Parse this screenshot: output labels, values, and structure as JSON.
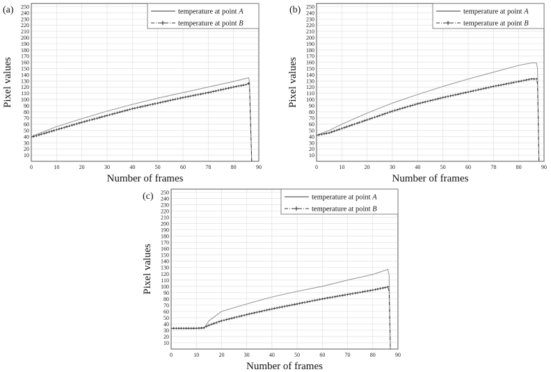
{
  "chart_data": [
    {
      "type": "line",
      "panel_label": "(a)",
      "xlabel": "Number of frames",
      "ylabel": "Pixel values",
      "xlim": [
        0,
        90
      ],
      "ylim": [
        0,
        255
      ],
      "xticks": [
        "0",
        "10",
        "20",
        "30",
        "40",
        "50",
        "60",
        "78",
        "80",
        "90"
      ],
      "yticks": [
        "10",
        "20",
        "30",
        "40",
        "50",
        "60",
        "70",
        "80",
        "90",
        "100",
        "110",
        "120",
        "130",
        "140",
        "150",
        "160",
        "170",
        "180",
        "190",
        "200",
        "210",
        "220",
        "230",
        "240",
        "250"
      ],
      "grid": true,
      "legend": "top-right",
      "series": [
        {
          "name": "temperature at point ",
          "name_italic": "A",
          "style": "solid",
          "color": "#9a9a9a",
          "x": [
            0,
            5,
            10,
            20,
            30,
            40,
            50,
            60,
            70,
            80,
            85,
            86,
            86.3,
            87.2
          ],
          "y": [
            40,
            48,
            56,
            69,
            81,
            92,
            102,
            111,
            120,
            129,
            134,
            135,
            128,
            0
          ]
        },
        {
          "name": "temperature at point ",
          "name_italic": "B",
          "style": "dashdot-plus",
          "color": "#333333",
          "x": [
            0,
            5,
            10,
            20,
            30,
            40,
            50,
            60,
            70,
            80,
            85,
            86,
            86.3,
            87.2
          ],
          "y": [
            39,
            45,
            51,
            63,
            74,
            85,
            94,
            103,
            111,
            120,
            124,
            126,
            120,
            0
          ]
        }
      ]
    },
    {
      "type": "line",
      "panel_label": "(b)",
      "xlabel": "Number of frames",
      "ylabel": "Pixel values",
      "xlim": [
        0,
        90
      ],
      "ylim": [
        0,
        255
      ],
      "xticks": [
        "0",
        "10",
        "20",
        "30",
        "40",
        "50",
        "60",
        "78",
        "80",
        "90"
      ],
      "yticks": [
        "10",
        "20",
        "30",
        "40",
        "50",
        "60",
        "70",
        "80",
        "90",
        "100",
        "110",
        "120",
        "130",
        "140",
        "150",
        "160",
        "170",
        "180",
        "190",
        "200",
        "210",
        "220",
        "230",
        "240",
        "250"
      ],
      "grid": true,
      "legend": "top-right",
      "series": [
        {
          "name": "temperature at point ",
          "name_italic": "A",
          "style": "solid",
          "color": "#9a9a9a",
          "x": [
            0,
            5,
            10,
            20,
            30,
            40,
            50,
            60,
            70,
            80,
            85,
            87,
            87.4,
            88
          ],
          "y": [
            42,
            50,
            60,
            78,
            94,
            108,
            121,
            133,
            144,
            155,
            159,
            159,
            150,
            0
          ]
        },
        {
          "name": "temperature at point ",
          "name_italic": "B",
          "style": "dashdot-plus",
          "color": "#333333",
          "x": [
            0,
            5,
            10,
            20,
            30,
            40,
            50,
            60,
            70,
            80,
            85,
            87,
            87.4,
            88
          ],
          "y": [
            42,
            46,
            53,
            67,
            81,
            93,
            103,
            112,
            121,
            129,
            133,
            133,
            125,
            0
          ]
        }
      ]
    },
    {
      "type": "line",
      "panel_label": "(c)",
      "xlabel": "Number of frames",
      "ylabel": "Pixel values",
      "xlim": [
        0,
        90
      ],
      "ylim": [
        0,
        255
      ],
      "xticks": [
        "0",
        "10",
        "20",
        "30",
        "40",
        "50",
        "60",
        "70",
        "80",
        "90"
      ],
      "yticks": [
        "10",
        "20",
        "30",
        "40",
        "50",
        "60",
        "70",
        "80",
        "90",
        "100",
        "110",
        "120",
        "130",
        "140",
        "150",
        "160",
        "170",
        "180",
        "190",
        "200",
        "210",
        "220",
        "230",
        "240",
        "250"
      ],
      "grid": true,
      "legend": "top-right",
      "series": [
        {
          "name": "temperature at point ",
          "name_italic": "A",
          "style": "solid",
          "color": "#9a9a9a",
          "x": [
            0,
            5,
            10,
            13,
            15,
            20,
            30,
            40,
            50,
            60,
            70,
            80,
            86,
            86.5,
            87
          ],
          "y": [
            33,
            33,
            33,
            33,
            45,
            60,
            72,
            83,
            92,
            100,
            110,
            119,
            127,
            118,
            0
          ]
        },
        {
          "name": "temperature at point ",
          "name_italic": "B",
          "style": "dashdot-plus",
          "color": "#333333",
          "x": [
            0,
            5,
            10,
            13,
            15,
            20,
            30,
            40,
            50,
            60,
            70,
            80,
            86,
            86.5,
            87
          ],
          "y": [
            33,
            33,
            33,
            34,
            38,
            45,
            55,
            64,
            72,
            80,
            87,
            94,
            99,
            92,
            0
          ]
        }
      ]
    }
  ]
}
